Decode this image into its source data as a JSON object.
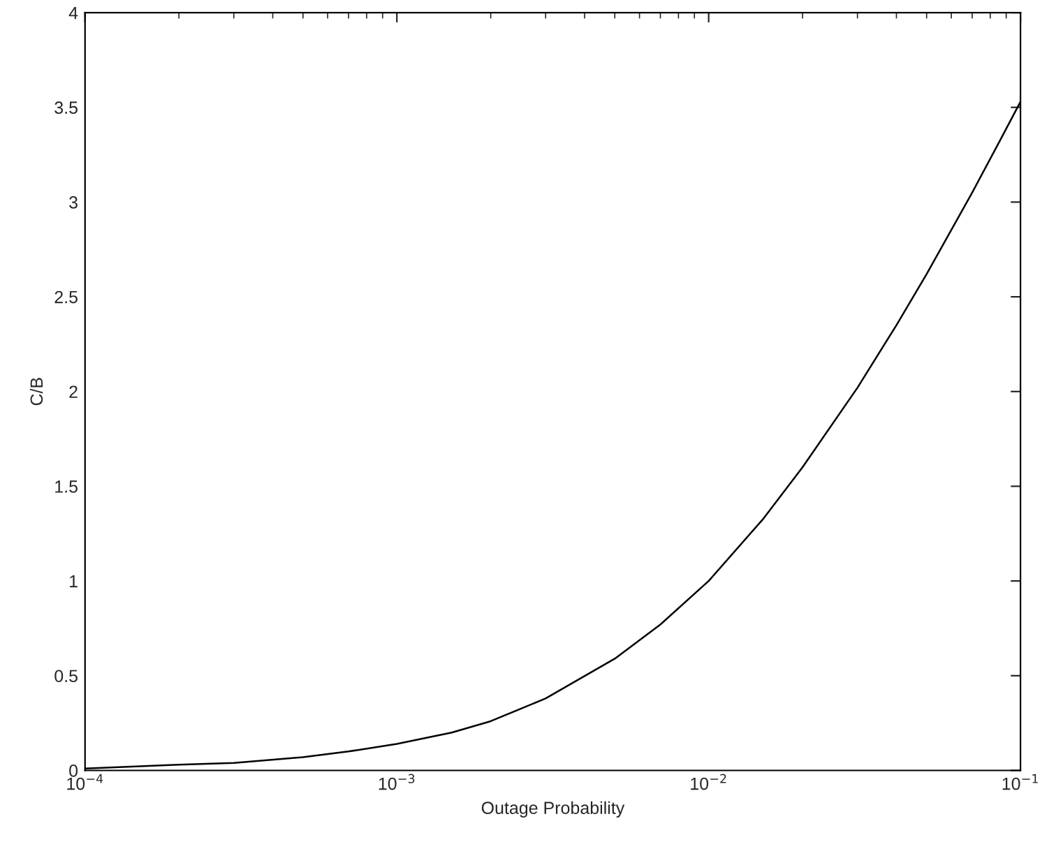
{
  "chart_data": {
    "type": "line",
    "xlabel": "Outage Probability",
    "ylabel": "C/B",
    "x": [
      0.0001,
      0.0002,
      0.0003,
      0.0005,
      0.0007,
      0.001,
      0.0015,
      0.002,
      0.003,
      0.005,
      0.007,
      0.01,
      0.015,
      0.02,
      0.03,
      0.04,
      0.05,
      0.07,
      0.085,
      0.1
    ],
    "series": [
      {
        "color": "#000000",
        "values": [
          0.01,
          0.03,
          0.04,
          0.07,
          0.1,
          0.14,
          0.2,
          0.26,
          0.38,
          0.59,
          0.77,
          1.0,
          1.33,
          1.6,
          2.02,
          2.35,
          2.62,
          3.05,
          3.31,
          3.53
        ]
      }
    ],
    "log": "x",
    "xlim": [
      0.0001,
      0.1
    ],
    "ylim": [
      0,
      4
    ],
    "xticks": [
      {
        "value": 0.0001,
        "label": "10$^{−4}$"
      },
      {
        "value": 0.001,
        "label": "10$^{−3}$"
      },
      {
        "value": 0.01,
        "label": "10$^{−2}$"
      },
      {
        "value": 0.1,
        "label": "10$^{−1}$"
      }
    ],
    "yticks": [
      0,
      0.5,
      1,
      1.5,
      2,
      2.5,
      3,
      3.5,
      4
    ],
    "grid": false,
    "marker": "none",
    "line_style": "solid"
  }
}
